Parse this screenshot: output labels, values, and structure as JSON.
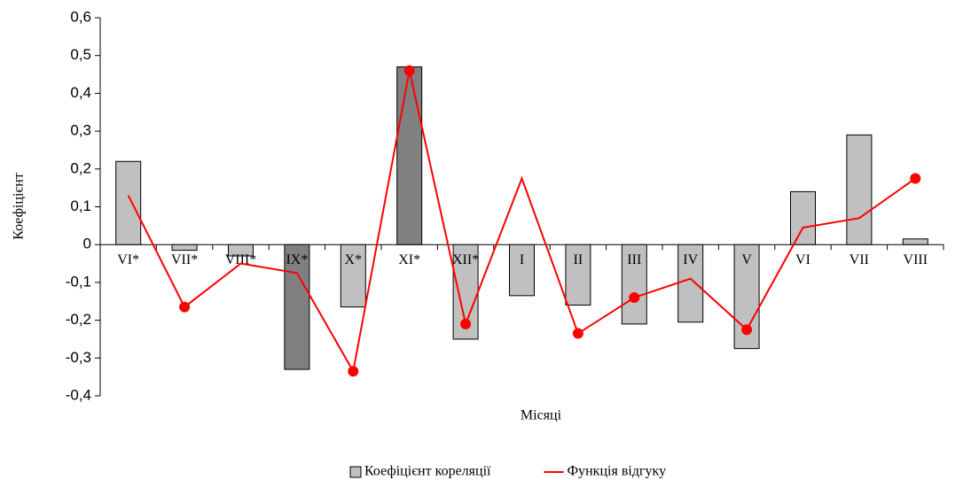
{
  "chart_data": {
    "type": "combo",
    "x_label": "Місяці",
    "y_label": "Коефіцієнт",
    "categories": [
      "VI*",
      "VII*",
      "VIII*",
      "IX*",
      "X*",
      "XI*",
      "XII*",
      "I",
      "II",
      "III",
      "IV",
      "V",
      "VI",
      "VII",
      "VIII"
    ],
    "series": [
      {
        "name": "Коефіцієнт кореляції",
        "type": "bar",
        "color": "#c0c0c0",
        "colors": [
          "#c0c0c0",
          "#c0c0c0",
          "#c0c0c0",
          "#808080",
          "#c0c0c0",
          "#808080",
          "#c0c0c0",
          "#c0c0c0",
          "#c0c0c0",
          "#c0c0c0",
          "#c0c0c0",
          "#c0c0c0",
          "#c0c0c0",
          "#c0c0c0",
          "#c0c0c0"
        ],
        "values": [
          0.22,
          -0.015,
          -0.03,
          -0.33,
          -0.165,
          0.47,
          -0.25,
          -0.135,
          -0.16,
          -0.21,
          -0.205,
          -0.275,
          0.14,
          0.29,
          0.015
        ]
      },
      {
        "name": "Функція відгуку",
        "type": "line",
        "color": "#ff0000",
        "markers": [
          false,
          true,
          false,
          false,
          true,
          true,
          true,
          false,
          true,
          true,
          false,
          true,
          false,
          false,
          true
        ],
        "values": [
          0.13,
          -0.165,
          -0.05,
          -0.075,
          -0.335,
          0.46,
          -0.21,
          0.175,
          -0.235,
          -0.14,
          -0.09,
          -0.225,
          0.045,
          0.07,
          0.175
        ]
      }
    ],
    "ylim": [
      -0.4,
      0.6
    ],
    "yticks": [
      {
        "value": -0.4,
        "label": "-0,4"
      },
      {
        "value": -0.3,
        "label": "-0,3"
      },
      {
        "value": -0.2,
        "label": "-0,2"
      },
      {
        "value": -0.1,
        "label": "-0,1"
      },
      0,
      {
        "value": 0.1,
        "label": "0,1"
      },
      {
        "value": 0.2,
        "label": "0,2"
      },
      {
        "value": 0.3,
        "label": "0,3"
      },
      {
        "value": 0.4,
        "label": "0,4"
      },
      {
        "value": 0.5,
        "label": "0,5"
      },
      {
        "value": 0.6,
        "label": "0,6"
      }
    ],
    "legend": "bottom"
  }
}
